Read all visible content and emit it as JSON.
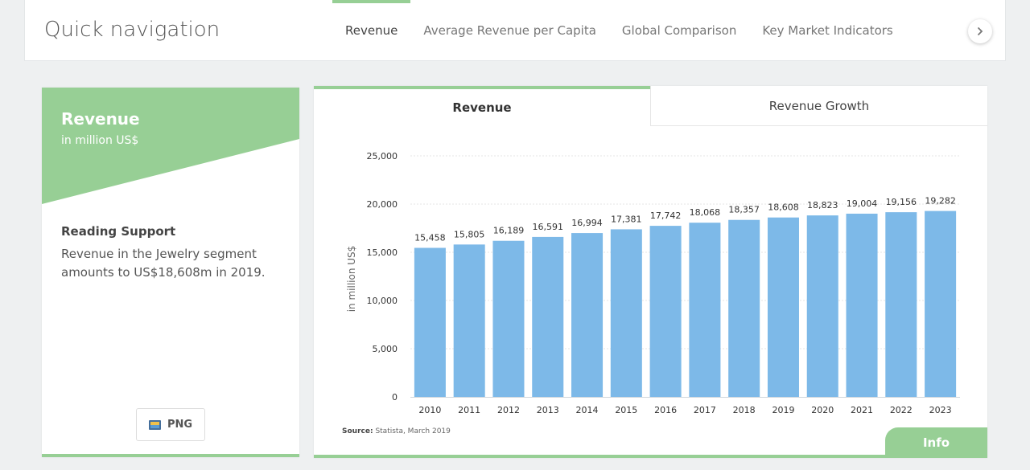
{
  "topnav": {
    "title": "Quick navigation",
    "tabs": [
      {
        "label": "Revenue",
        "active": true
      },
      {
        "label": "Average Revenue per Capita",
        "active": false
      },
      {
        "label": "Global Comparison",
        "active": false
      },
      {
        "label": "Key Market Indicators",
        "active": false
      }
    ],
    "next_icon": "chevron-right-icon"
  },
  "card": {
    "title": "Revenue",
    "unit": "in million US$",
    "reading_title": "Reading Support",
    "reading_text": "Revenue in the Jewelry segment amounts to US$18,608m in 2019.",
    "png_label": "PNG",
    "png_icon": "image-icon"
  },
  "chart_tabs": {
    "active": "Revenue",
    "inactive": "Revenue Growth"
  },
  "source": {
    "label": "Source:",
    "text": "Statista, March 2019"
  },
  "info_label": "Info",
  "colors": {
    "accent": "#97cf95",
    "bar": "#7db9e8"
  },
  "chart_data": {
    "type": "bar",
    "title": "",
    "xlabel": "",
    "ylabel": "in million US$",
    "categories": [
      "2010",
      "2011",
      "2012",
      "2013",
      "2014",
      "2015",
      "2016",
      "2017",
      "2018",
      "2019",
      "2020",
      "2021",
      "2022",
      "2023"
    ],
    "values": [
      15458,
      15805,
      16189,
      16591,
      16994,
      17381,
      17742,
      18068,
      18357,
      18608,
      18823,
      19004,
      19156,
      19282
    ],
    "data_labels": [
      "15,458",
      "15,805",
      "16,189",
      "16,591",
      "16,994",
      "17,381",
      "17,742",
      "18,068",
      "18,357",
      "18,608",
      "18,823",
      "19,004",
      "19,156",
      "19,282"
    ],
    "yticks": [
      0,
      5000,
      10000,
      15000,
      20000,
      25000
    ],
    "ytick_labels": [
      "0",
      "5,000",
      "10,000",
      "15,000",
      "20,000",
      "25,000"
    ],
    "ylim": [
      0,
      25000
    ],
    "grid": true
  }
}
